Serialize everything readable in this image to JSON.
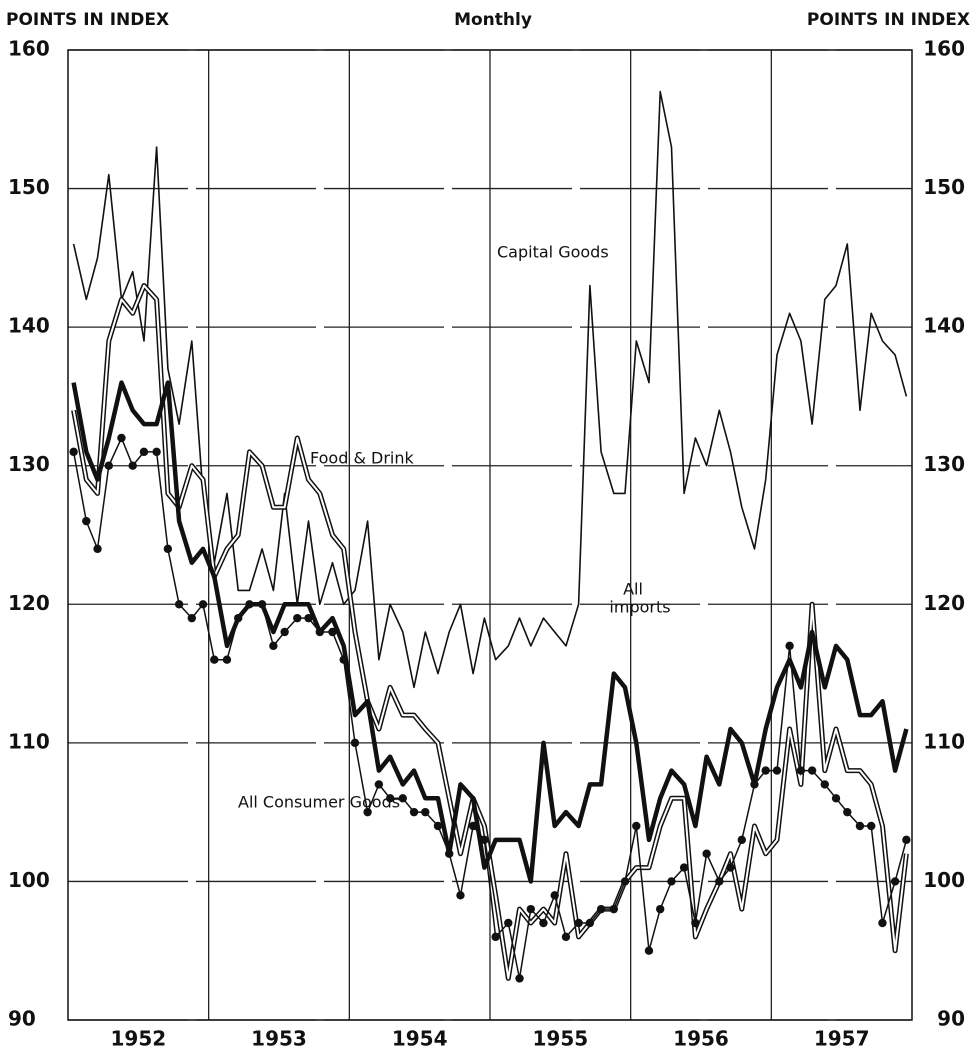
{
  "chart_data": {
    "type": "line",
    "title": "Monthly",
    "ylabel_left": "POINTS IN INDEX",
    "ylabel_right": "POINTS IN INDEX",
    "annotations": [
      "Capital Goods",
      "Food & Drink",
      "All",
      "imports",
      "All Consumer Goods"
    ],
    "x": [
      1952.04,
      1952.13,
      1952.21,
      1952.29,
      1952.38,
      1952.46,
      1952.54,
      1952.63,
      1952.71,
      1952.79,
      1952.88,
      1952.96,
      1953.04,
      1953.13,
      1953.21,
      1953.29,
      1953.38,
      1953.46,
      1953.54,
      1953.63,
      1953.71,
      1953.79,
      1953.88,
      1953.96,
      1954.04,
      1954.13,
      1954.21,
      1954.29,
      1954.38,
      1954.46,
      1954.54,
      1954.63,
      1954.71,
      1954.79,
      1954.88,
      1954.96,
      1955.04,
      1955.13,
      1955.21,
      1955.29,
      1955.38,
      1955.46,
      1955.54,
      1955.63,
      1955.71,
      1955.79,
      1955.88,
      1955.96,
      1956.04,
      1956.13,
      1956.21,
      1956.29,
      1956.38,
      1956.46,
      1956.54,
      1956.63,
      1956.71,
      1956.79,
      1956.88,
      1956.96,
      1957.04,
      1957.13,
      1957.21,
      1957.29,
      1957.38,
      1957.46,
      1957.54,
      1957.63,
      1957.71,
      1957.79,
      1957.88,
      1957.96
    ],
    "xlim": [
      1952,
      1958
    ],
    "xticks": [
      {
        "value": 1952.5,
        "label": "1952"
      },
      {
        "value": 1953.5,
        "label": "1953"
      },
      {
        "value": 1954.5,
        "label": "1954"
      },
      {
        "value": 1955.5,
        "label": "1955"
      },
      {
        "value": 1956.5,
        "label": "1956"
      },
      {
        "value": 1957.5,
        "label": "1957"
      }
    ],
    "xgrid": [
      1953,
      1954,
      1955,
      1956,
      1957
    ],
    "ylim": [
      90,
      160
    ],
    "yticks": [
      90,
      100,
      110,
      120,
      130,
      140,
      150,
      160
    ],
    "grid": true,
    "series": [
      {
        "name": "Capital Goods",
        "color": "#111111",
        "style": "thin",
        "values": [
          146,
          142,
          145,
          151,
          142,
          144,
          139,
          153,
          137,
          133,
          139,
          128,
          123,
          128,
          121,
          121,
          124,
          121,
          128,
          120,
          126,
          120,
          123,
          120,
          121,
          126,
          116,
          120,
          118,
          114,
          118,
          115,
          118,
          120,
          115,
          119,
          116,
          117,
          119,
          117,
          119,
          118,
          117,
          120,
          143,
          131,
          128,
          128,
          139,
          136,
          157,
          153,
          128,
          132,
          130,
          134,
          131,
          127,
          124,
          129,
          138,
          141,
          139,
          133,
          142,
          143,
          146,
          134,
          141,
          139,
          138,
          135
        ]
      },
      {
        "name": "Food & Drink",
        "color": "#111111",
        "style": "double",
        "values": [
          134,
          129,
          128,
          139,
          142,
          141,
          143,
          142,
          128,
          127,
          130,
          129,
          122,
          124,
          125,
          131,
          130,
          127,
          127,
          132,
          129,
          128,
          125,
          124,
          118,
          113,
          111,
          114,
          112,
          112,
          111,
          110,
          106,
          102,
          106,
          104,
          99,
          93,
          98,
          97,
          98,
          97,
          102,
          96,
          97,
          98,
          98,
          100,
          101,
          101,
          104,
          106,
          106,
          96,
          98,
          100,
          102,
          98,
          104,
          102,
          103,
          111,
          107,
          120,
          108,
          111,
          108,
          108,
          107,
          104,
          95,
          102
        ]
      },
      {
        "name": "All Imports",
        "color": "#111111",
        "style": "thick",
        "values": [
          136,
          131,
          129,
          132,
          136,
          134,
          133,
          133,
          136,
          126,
          123,
          124,
          122,
          117,
          119,
          120,
          120,
          118,
          120,
          120,
          120,
          118,
          119,
          117,
          112,
          113,
          108,
          109,
          107,
          108,
          106,
          106,
          102,
          107,
          106,
          101,
          103,
          103,
          103,
          100,
          110,
          104,
          105,
          104,
          107,
          107,
          115,
          114,
          110,
          103,
          106,
          108,
          107,
          104,
          109,
          107,
          111,
          110,
          107,
          111,
          114,
          116,
          114,
          118,
          114,
          117,
          116,
          112,
          112,
          113,
          108,
          111
        ]
      },
      {
        "name": "All Consumer Goods",
        "color": "#111111",
        "style": "dotted",
        "values": [
          131,
          126,
          124,
          130,
          132,
          130,
          131,
          131,
          124,
          120,
          119,
          120,
          116,
          116,
          119,
          120,
          120,
          117,
          118,
          119,
          119,
          118,
          118,
          116,
          110,
          105,
          107,
          106,
          106,
          105,
          105,
          104,
          102,
          99,
          104,
          103,
          96,
          97,
          93,
          98,
          97,
          99,
          96,
          97,
          97,
          98,
          98,
          100,
          104,
          95,
          98,
          100,
          101,
          97,
          102,
          100,
          101,
          103,
          107,
          108,
          108,
          117,
          108,
          108,
          107,
          106,
          105,
          104,
          104,
          97,
          100,
          103
        ]
      }
    ]
  }
}
